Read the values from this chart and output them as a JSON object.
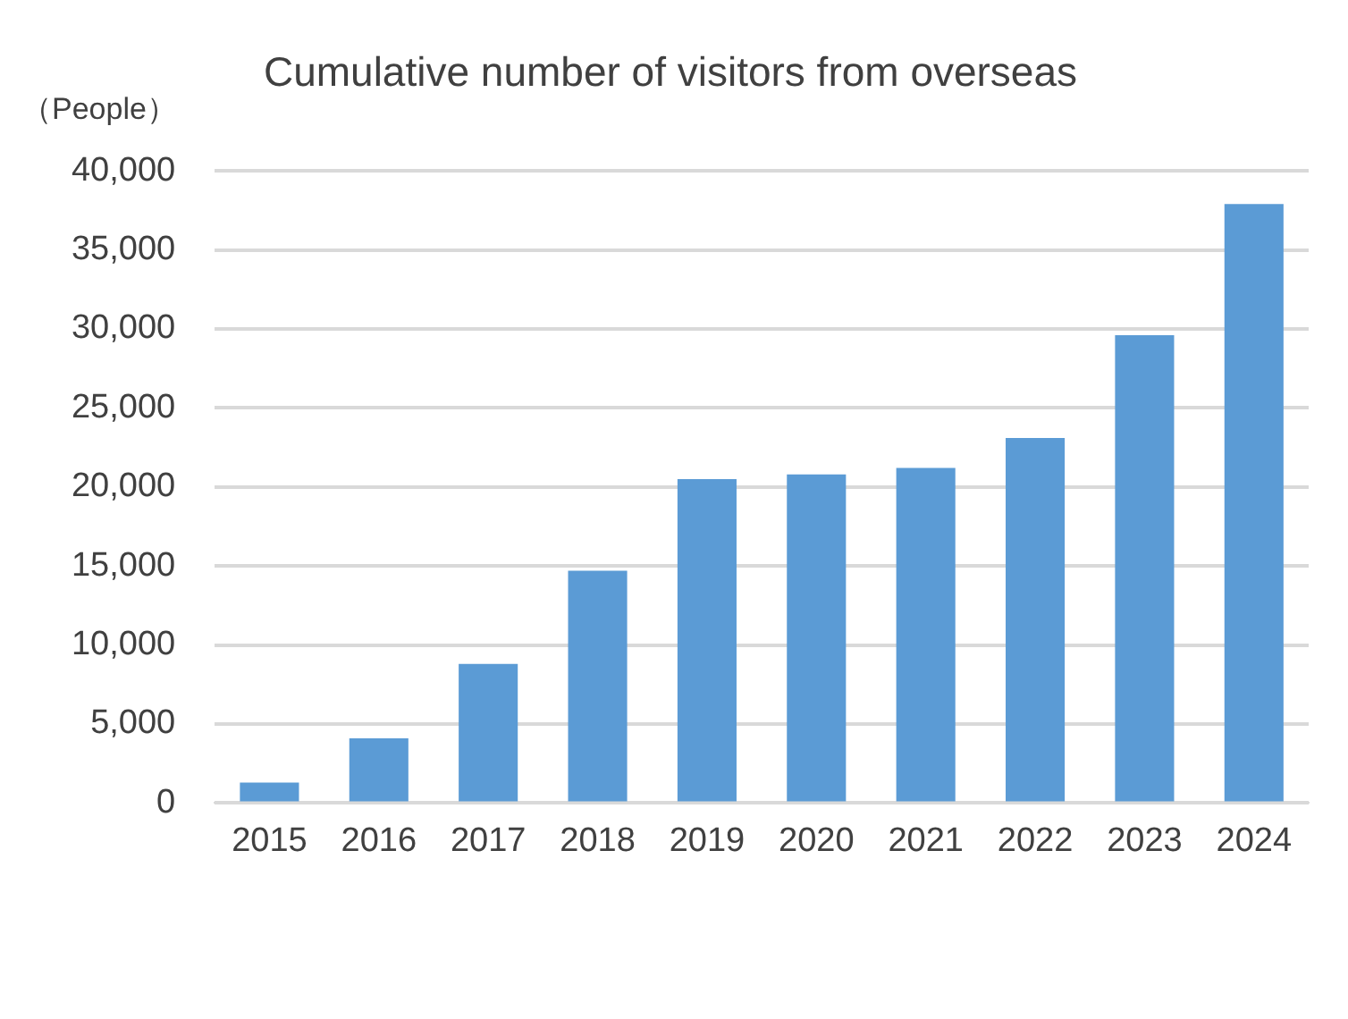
{
  "chart_data": {
    "type": "bar",
    "title": "Cumulative number of visitors from overseas",
    "ylabel": "（People）",
    "categories": [
      "2015",
      "2016",
      "2017",
      "2018",
      "2019",
      "2020",
      "2021",
      "2022",
      "2023",
      "2024"
    ],
    "values": [
      1300,
      4100,
      8800,
      14700,
      20500,
      20800,
      21200,
      23100,
      29600,
      37900
    ],
    "color": "#5b9bd5",
    "ylim": [
      0,
      40000
    ],
    "yticks": [
      {
        "value": 0,
        "label": "0"
      },
      {
        "value": 5000,
        "label": "5,000"
      },
      {
        "value": 10000,
        "label": "10,000"
      },
      {
        "value": 15000,
        "label": "15,000"
      },
      {
        "value": 20000,
        "label": "20,000"
      },
      {
        "value": 25000,
        "label": "25,000"
      },
      {
        "value": 30000,
        "label": "30,000"
      },
      {
        "value": 35000,
        "label": "35,000"
      },
      {
        "value": 40000,
        "label": "40,000"
      }
    ],
    "grid": "y",
    "legend": false
  }
}
